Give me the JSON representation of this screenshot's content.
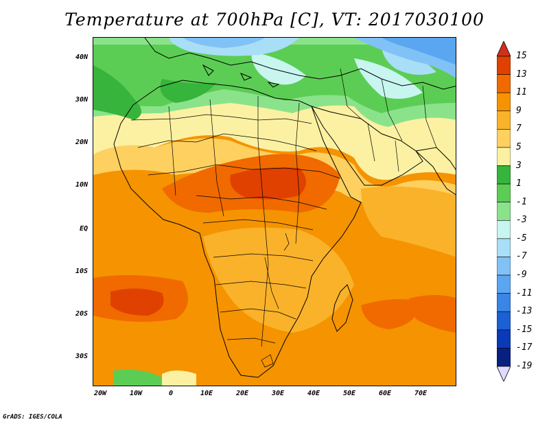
{
  "title": "Temperature at 700hPa [C], VT: 2017030100",
  "credit": "GrADS: IGES/COLA",
  "lat_labels": [
    "40N",
    "30N",
    "20N",
    "10N",
    "EQ",
    "10S",
    "20S",
    "30S"
  ],
  "lon_labels": [
    "20W",
    "10W",
    "0",
    "10E",
    "20E",
    "30E",
    "40E",
    "50E",
    "60E",
    "70E"
  ],
  "colorbar": {
    "labels": [
      "15",
      "13",
      "11",
      "9",
      "7",
      "5",
      "3",
      "1",
      "-1",
      "-3",
      "-5",
      "-7",
      "-9",
      "-11",
      "-13",
      "-15",
      "-17",
      "-19"
    ],
    "colors": [
      "#c81e00",
      "#e04100",
      "#f06a00",
      "#f59300",
      "#fab22a",
      "#fdd060",
      "#fcf1a2",
      "#36b43c",
      "#5ccd54",
      "#8ae38b",
      "#c8f5f0",
      "#a9def7",
      "#81c2f6",
      "#5aa6f0",
      "#3a85e6",
      "#1c60d6",
      "#0a3ab8",
      "#082080",
      "#dedbff"
    ],
    "top_triangle": "#d2301a",
    "bottom_triangle": "#dedbff"
  },
  "field_colors": {
    "hot": "#e04100",
    "very_warm": "#f06a00",
    "warm": "#f59300",
    "mild": "#fab22a",
    "pale": "#fdd060",
    "cream": "#fcf1a2",
    "green_dark": "#36b43c",
    "green": "#5ccd54",
    "green_light": "#8ae38b",
    "mint": "#c8f5f0",
    "sky": "#a9def7",
    "blue": "#81c2f6",
    "blue_dark": "#5aa6f0"
  }
}
